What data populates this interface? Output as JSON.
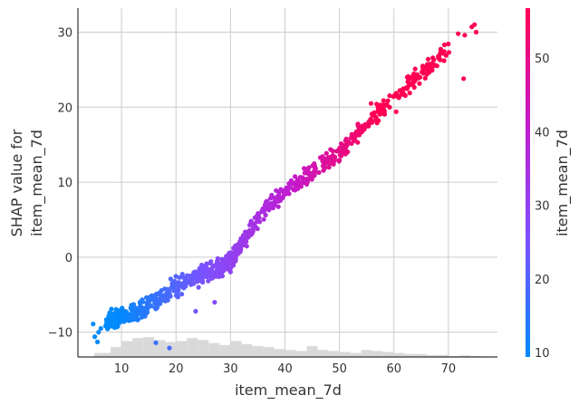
{
  "chart_data": {
    "type": "scatter",
    "xlabel": "item_mean_7d",
    "ylabel_lines": [
      "SHAP value for",
      "item_mean_7d"
    ],
    "xlim": [
      2,
      79
    ],
    "ylim": [
      -13.3,
      33.2
    ],
    "xticks": [
      10,
      20,
      30,
      40,
      50,
      60,
      70
    ],
    "yticks": [
      -10,
      0,
      10,
      20,
      30
    ],
    "grid": true,
    "colorbar": {
      "label": "item_mean_7d",
      "range": [
        9.4,
        56.8
      ],
      "ticks": [
        10,
        20,
        30,
        40,
        50
      ],
      "colors": [
        "#008afb",
        "#7c52ff",
        "#c21bcf",
        "#ff0052"
      ]
    },
    "histogram": {
      "bin_edges": [
        5,
        8,
        10,
        12,
        14,
        16,
        18,
        20,
        22,
        24,
        26,
        28,
        30,
        32,
        34,
        36,
        38,
        40,
        42,
        44,
        46,
        48,
        50,
        52,
        54,
        56,
        58,
        60,
        62,
        64,
        66,
        68,
        70,
        72,
        74,
        76
      ],
      "relative_heights": [
        0.2,
        0.5,
        0.8,
        0.95,
        1.0,
        0.85,
        0.75,
        0.8,
        0.95,
        0.85,
        0.7,
        0.6,
        0.8,
        0.65,
        0.55,
        0.5,
        0.4,
        0.35,
        0.3,
        0.55,
        0.35,
        0.3,
        0.25,
        0.2,
        0.35,
        0.3,
        0.25,
        0.2,
        0.15,
        0.15,
        0.1,
        0.1,
        0.05,
        0.08,
        0.05
      ]
    },
    "trend": [
      [
        5,
        -9.5
      ],
      [
        8,
        -8.5
      ],
      [
        10,
        -8.0
      ],
      [
        12,
        -7.5
      ],
      [
        14,
        -7.0
      ],
      [
        16,
        -6.0
      ],
      [
        18,
        -5.0
      ],
      [
        20,
        -4.0
      ],
      [
        22,
        -3.2
      ],
      [
        24,
        -2.5
      ],
      [
        26,
        -2.0
      ],
      [
        28,
        -1.5
      ],
      [
        30,
        -0.5
      ],
      [
        32,
        1.5
      ],
      [
        34,
        4.0
      ],
      [
        36,
        6.0
      ],
      [
        38,
        7.5
      ],
      [
        40,
        9.0
      ],
      [
        42,
        10.0
      ],
      [
        44,
        11.0
      ],
      [
        46,
        12.0
      ],
      [
        48,
        13.0
      ],
      [
        50,
        14.0
      ],
      [
        52,
        15.5
      ],
      [
        54,
        17.0
      ],
      [
        56,
        18.5
      ],
      [
        58,
        20.0
      ],
      [
        60,
        21.5
      ],
      [
        62,
        22.5
      ],
      [
        64,
        24.0
      ],
      [
        66,
        25.0
      ],
      [
        68,
        26.5
      ],
      [
        70,
        28.0
      ],
      [
        72,
        29.5
      ],
      [
        75,
        31.0
      ]
    ],
    "spread": 1.0,
    "points": [
      [
        74.8,
        31.0
      ],
      [
        75.1,
        30.0
      ],
      [
        74.3,
        30.7
      ],
      [
        72.8,
        23.8
      ],
      [
        73.0,
        29.6
      ],
      [
        70.1,
        27.3
      ],
      [
        69.2,
        26.2
      ],
      [
        67.5,
        25.6
      ],
      [
        66.2,
        25.7
      ],
      [
        64.8,
        24.0
      ],
      [
        62.8,
        23.9
      ],
      [
        63.9,
        25.1
      ],
      [
        58.1,
        20.3
      ],
      [
        55.8,
        20.5
      ],
      [
        71.8,
        29.8
      ],
      [
        4.8,
        -8.9
      ],
      [
        5.1,
        -10.6
      ],
      [
        5.6,
        -11.3
      ],
      [
        6.2,
        -9.5
      ],
      [
        5.8,
        -10.0
      ],
      [
        16.3,
        -11.4
      ],
      [
        18.8,
        -12.1
      ],
      [
        23.6,
        -7.2
      ],
      [
        27.1,
        -6.0
      ],
      [
        60.4,
        19.4
      ]
    ]
  }
}
